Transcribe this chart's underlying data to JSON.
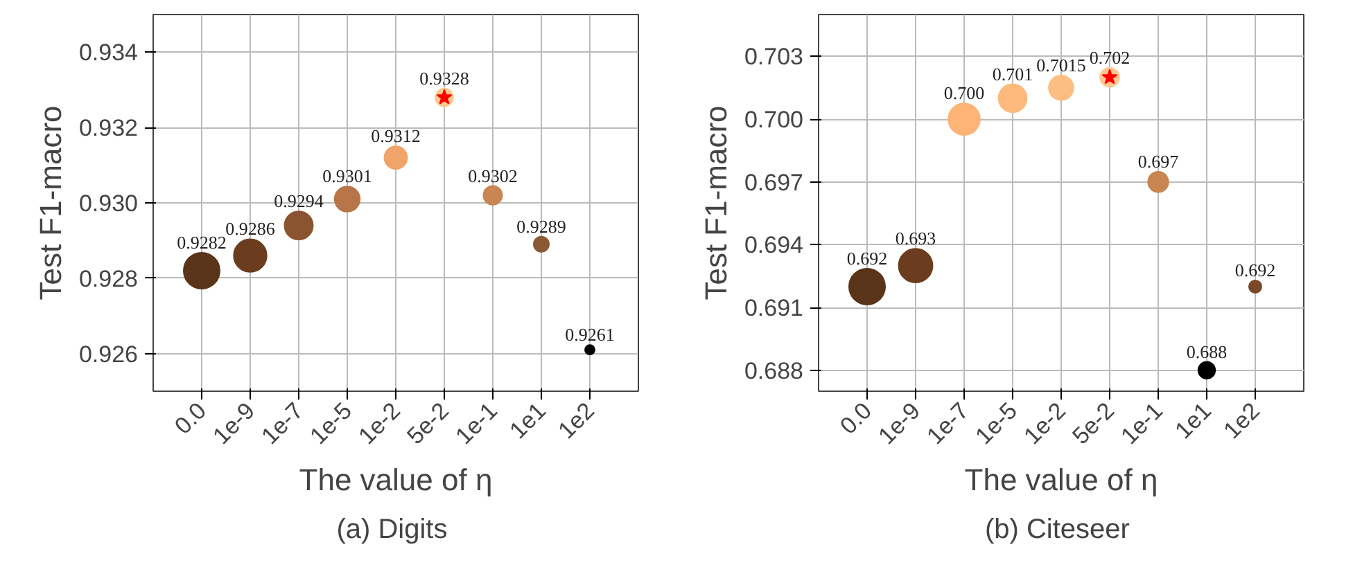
{
  "chart_data": [
    {
      "type": "bubble",
      "xlabel": "The value of η",
      "ylabel": "Test F1-macro",
      "categories": [
        "0.0",
        "1e-9",
        "1e-7",
        "1e-5",
        "1e-2",
        "5e-2",
        "1e-1",
        "1e1",
        "1e2"
      ],
      "ylim": [
        0.925,
        0.935
      ],
      "yticks": [
        {
          "value": 0.926,
          "label": "0.926"
        },
        {
          "value": 0.928,
          "label": "0.928"
        },
        {
          "value": 0.93,
          "label": "0.930"
        },
        {
          "value": 0.932,
          "label": "0.932"
        },
        {
          "value": 0.934,
          "label": "0.934"
        }
      ],
      "grid": true,
      "annotations": [
        "(a)  Digits"
      ],
      "series": [
        {
          "values": [
            0.9282,
            0.9286,
            0.9294,
            0.9301,
            0.9312,
            0.9328,
            0.9302,
            0.9289,
            0.9261
          ],
          "sizes": [
            1,
            0.83,
            0.62,
            0.49,
            0.4,
            0.24,
            0.27,
            0.18,
            0.07
          ],
          "colors": [
            "#5a3418",
            "#6b3d1e",
            "#8b5430",
            "#b87648",
            "#f0a46a",
            "#fcc88e",
            "#c98552",
            "#8a5a34",
            "#000000"
          ],
          "value_labels": [
            "0.9282",
            "0.9286",
            "0.9294",
            "0.9301",
            "0.9312",
            "0.9328",
            "0.9302",
            "0.9289",
            "0.9261"
          ]
        },
        {
          "type": "scatter",
          "marker": "star",
          "x": [
            "5e-2"
          ],
          "values": [
            0.9328
          ],
          "color": "#ff0000"
        }
      ]
    },
    {
      "type": "bubble",
      "xlabel": "The value of η",
      "ylabel": "Test F1-macro",
      "categories": [
        "0.0",
        "1e-9",
        "1e-7",
        "1e-5",
        "1e-2",
        "5e-2",
        "1e-1",
        "1e1",
        "1e2"
      ],
      "ylim": [
        0.687,
        0.705
      ],
      "yticks": [
        {
          "value": 0.688,
          "label": "0.688"
        },
        {
          "value": 0.691,
          "label": "0.691"
        },
        {
          "value": 0.694,
          "label": "0.694"
        },
        {
          "value": 0.697,
          "label": "0.697"
        },
        {
          "value": 0.7,
          "label": "0.700"
        },
        {
          "value": 0.703,
          "label": "0.703"
        }
      ],
      "grid": true,
      "annotations": [
        "(b)  Citeseer"
      ],
      "series": [
        {
          "values": [
            0.692,
            0.693,
            0.7,
            0.701,
            0.7015,
            0.702,
            0.697,
            0.688,
            0.692
          ],
          "sizes": [
            1,
            0.88,
            0.77,
            0.61,
            0.47,
            0.28,
            0.32,
            0.22,
            0.12
          ],
          "colors": [
            "#5a3418",
            "#6b3d1e",
            "#fdb476",
            "#fdb97c",
            "#fdbe84",
            "#fdc890",
            "#c98552",
            "#000000",
            "#7a4a28"
          ],
          "value_labels": [
            "0.692",
            "0.693",
            "0.700",
            "0.701",
            "0.7015",
            "0.702",
            "0.697",
            "0.688",
            "0.692"
          ]
        },
        {
          "type": "scatter",
          "marker": "star",
          "x": [
            "5e-2"
          ],
          "values": [
            0.702
          ],
          "color": "#ff0000"
        }
      ]
    }
  ]
}
